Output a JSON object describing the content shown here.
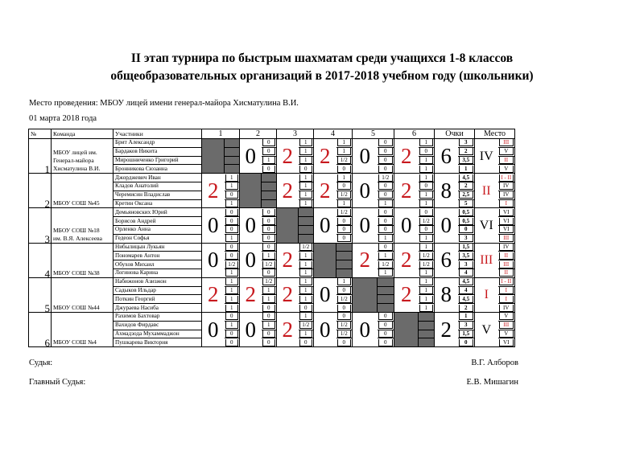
{
  "title_line1": "II этап турнира по быстрым шахматам среди учащихся 1-8 классов",
  "title_line2": "общеобразовательных организаций в 2017-2018 учебном году (школьники)",
  "venue": "Место проведения: МБОУ лицей имени генерал-майора Хисматулина В.И.",
  "date": "01 марта 2018 года",
  "headers": {
    "num": "№",
    "team": "Команда",
    "participants": "Участники",
    "rounds": [
      "1",
      "2",
      "3",
      "4",
      "5",
      "6"
    ],
    "points": "Очки",
    "place": "Место"
  },
  "colors": {
    "highlight": "#c8191e",
    "self_cell": "#6b6b6b"
  },
  "teams": [
    {
      "number": "1",
      "name": "МБОУ лицей им.\nГенерал-майора\nХисматулина В.И.",
      "scores": [
        null,
        "0",
        "2",
        "2",
        "0",
        "2"
      ],
      "total": "6",
      "place": "IV",
      "participants": [
        {
          "name": "Брит Александр",
          "results": [
            null,
            "0",
            "1",
            "1",
            "0",
            "1"
          ],
          "points": "3",
          "place": "III"
        },
        {
          "name": "Бардаков Никита",
          "results": [
            null,
            "0",
            "1",
            "1",
            "0",
            "0"
          ],
          "points": "2",
          "place": "V"
        },
        {
          "name": "Мирошниченко Григорий",
          "results": [
            null,
            "1",
            "1",
            "1/2",
            "0",
            "1"
          ],
          "points": "3,5",
          "place": "II"
        },
        {
          "name": "Бронникова Сюзанна",
          "results": [
            null,
            "0",
            "0",
            "0",
            "0",
            "1"
          ],
          "points": "1",
          "place": "V"
        }
      ]
    },
    {
      "number": "2",
      "name": "МБОУ СОШ №45",
      "scores": [
        "2",
        null,
        "2",
        "2",
        "0",
        "2"
      ],
      "total": "8",
      "place": "II",
      "participants": [
        {
          "name": "Джорджевич Иван",
          "results": [
            "1",
            null,
            "1",
            "1",
            "1/2",
            "1"
          ],
          "points": "4,5",
          "place": "I - II"
        },
        {
          "name": "Кладов Анатолий",
          "results": [
            "1",
            null,
            "1",
            "0",
            "0",
            "0"
          ],
          "points": "2",
          "place": "IV"
        },
        {
          "name": "Черемисин Владислав",
          "results": [
            "0",
            null,
            "1",
            "1/2",
            "0",
            "1"
          ],
          "points": "2,5",
          "place": "IV"
        },
        {
          "name": "Кретин Оксана",
          "results": [
            "1",
            null,
            "1",
            "1",
            "1",
            "1"
          ],
          "points": "5",
          "place": "I"
        }
      ]
    },
    {
      "number": "3",
      "name": "МБОУ СОШ №18\nим. В.Я. Алексеева",
      "scores": [
        "0",
        "0",
        null,
        "0",
        "0",
        "0"
      ],
      "total": "0",
      "place": "VI",
      "participants": [
        {
          "name": "Демьяновских Юрий",
          "results": [
            "0",
            "0",
            null,
            "1/2",
            "0",
            "0"
          ],
          "points": "0,5",
          "place": "VI"
        },
        {
          "name": "Борисов Андрей",
          "results": [
            "0",
            "0",
            null,
            "0",
            "0",
            "1/2"
          ],
          "points": "0,5",
          "place": "VI"
        },
        {
          "name": "Орленко Анна",
          "results": [
            "0",
            "0",
            null,
            "0",
            "0",
            "0"
          ],
          "points": "0",
          "place": "VI"
        },
        {
          "name": "Гедеон Софья",
          "results": [
            "1",
            "0",
            null,
            "0",
            "1",
            "1"
          ],
          "points": "3",
          "place": "III"
        }
      ]
    },
    {
      "number": "4",
      "name": "МБОУ СОШ №38",
      "scores": [
        "0",
        "0",
        "2",
        null,
        "2",
        "2"
      ],
      "total": "6",
      "place": "III",
      "participants": [
        {
          "name": "Нибылицын Лукьян",
          "results": [
            "0",
            "0",
            "1/2",
            null,
            "0",
            "1"
          ],
          "points": "1,5",
          "place": "IV"
        },
        {
          "name": "Пономарев Антон",
          "results": [
            "0",
            "1",
            "1",
            null,
            "1",
            "1/2"
          ],
          "points": "3,5",
          "place": "II"
        },
        {
          "name": "Обухов Михаил",
          "results": [
            "1/2",
            "1/2",
            "1",
            null,
            "1/2",
            "1/2"
          ],
          "points": "3",
          "place": "III"
        },
        {
          "name": "Логинова Карина",
          "results": [
            "1",
            "0",
            "1",
            null,
            "1",
            "1"
          ],
          "points": "4",
          "place": "II"
        }
      ]
    },
    {
      "number": "5",
      "name": "МБОУ СОШ №44",
      "scores": [
        "2",
        "2",
        "2",
        "0",
        null,
        "2"
      ],
      "total": "8",
      "place": "I",
      "participants": [
        {
          "name": "Набижонов Азизжон",
          "results": [
            "1",
            "1/2",
            "1",
            "1",
            null,
            "1"
          ],
          "points": "4,5",
          "place": "I - II"
        },
        {
          "name": "Садыков Ильдар",
          "results": [
            "1",
            "1",
            "1",
            "0",
            null,
            "1"
          ],
          "points": "4",
          "place": "I"
        },
        {
          "name": "Поткин Георгий",
          "results": [
            "1",
            "1",
            "1",
            "1/2",
            null,
            "1"
          ],
          "points": "4,5",
          "place": "I"
        },
        {
          "name": "Джураева Насиба",
          "results": [
            "1",
            "0",
            "0",
            "0",
            null,
            "1"
          ],
          "points": "2",
          "place": "IV"
        }
      ]
    },
    {
      "number": "6",
      "name": "МБОУ СОШ №4",
      "scores": [
        "0",
        "0",
        "2",
        "0",
        "0",
        null
      ],
      "total": "2",
      "place": "V",
      "participants": [
        {
          "name": "Рахимов Бахтовар",
          "results": [
            "0",
            "0",
            "1",
            "0",
            "0",
            null
          ],
          "points": "1",
          "place": "V"
        },
        {
          "name": "Вахидов Фирдавс",
          "results": [
            "1",
            "1",
            "1/2",
            "1/2",
            "0",
            null
          ],
          "points": "3",
          "place": "III"
        },
        {
          "name": "Ахмадзода Мухаммаджон",
          "results": [
            "0",
            "0",
            "1",
            "1/2",
            "0",
            null
          ],
          "points": "1,5",
          "place": "V"
        },
        {
          "name": "Пушкарева Виктория",
          "results": [
            "0",
            "0",
            "0",
            "0",
            "0",
            null
          ],
          "points": "0",
          "place": "VI"
        }
      ]
    }
  ],
  "footer": {
    "judge_label": "Судья:",
    "judge_name": "В.Г. Алборов",
    "chief_label": "Главный Судья:",
    "chief_name": "Е.В. Мишагин"
  }
}
